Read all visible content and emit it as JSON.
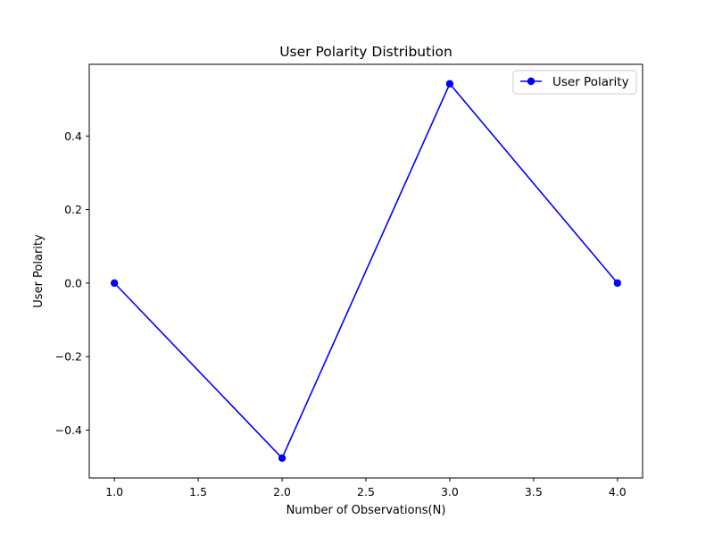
{
  "chart_data": {
    "type": "line",
    "title": "User Polarity Distribution",
    "xlabel": "Number of Observations(N)",
    "ylabel": "User Polarity",
    "xlim": [
      0.85,
      4.15
    ],
    "ylim": [
      -0.53,
      0.595
    ],
    "x_ticks": [
      1.0,
      1.5,
      2.0,
      2.5,
      3.0,
      3.5,
      4.0
    ],
    "x_tick_labels": [
      "1.0",
      "1.5",
      "2.0",
      "2.5",
      "3.0",
      "3.5",
      "4.0"
    ],
    "y_ticks": [
      -0.4,
      -0.2,
      0.0,
      0.2,
      0.4
    ],
    "y_tick_labels": [
      "−0.4",
      "−0.2",
      "0.0",
      "0.2",
      "0.4"
    ],
    "grid": false,
    "legend_position": "top-right",
    "series": [
      {
        "name": "User Polarity",
        "color": "#0000ff",
        "marker": "circle",
        "x": [
          1,
          2,
          3,
          4
        ],
        "y": [
          0.0,
          -0.476,
          0.542,
          0.0
        ]
      }
    ]
  }
}
